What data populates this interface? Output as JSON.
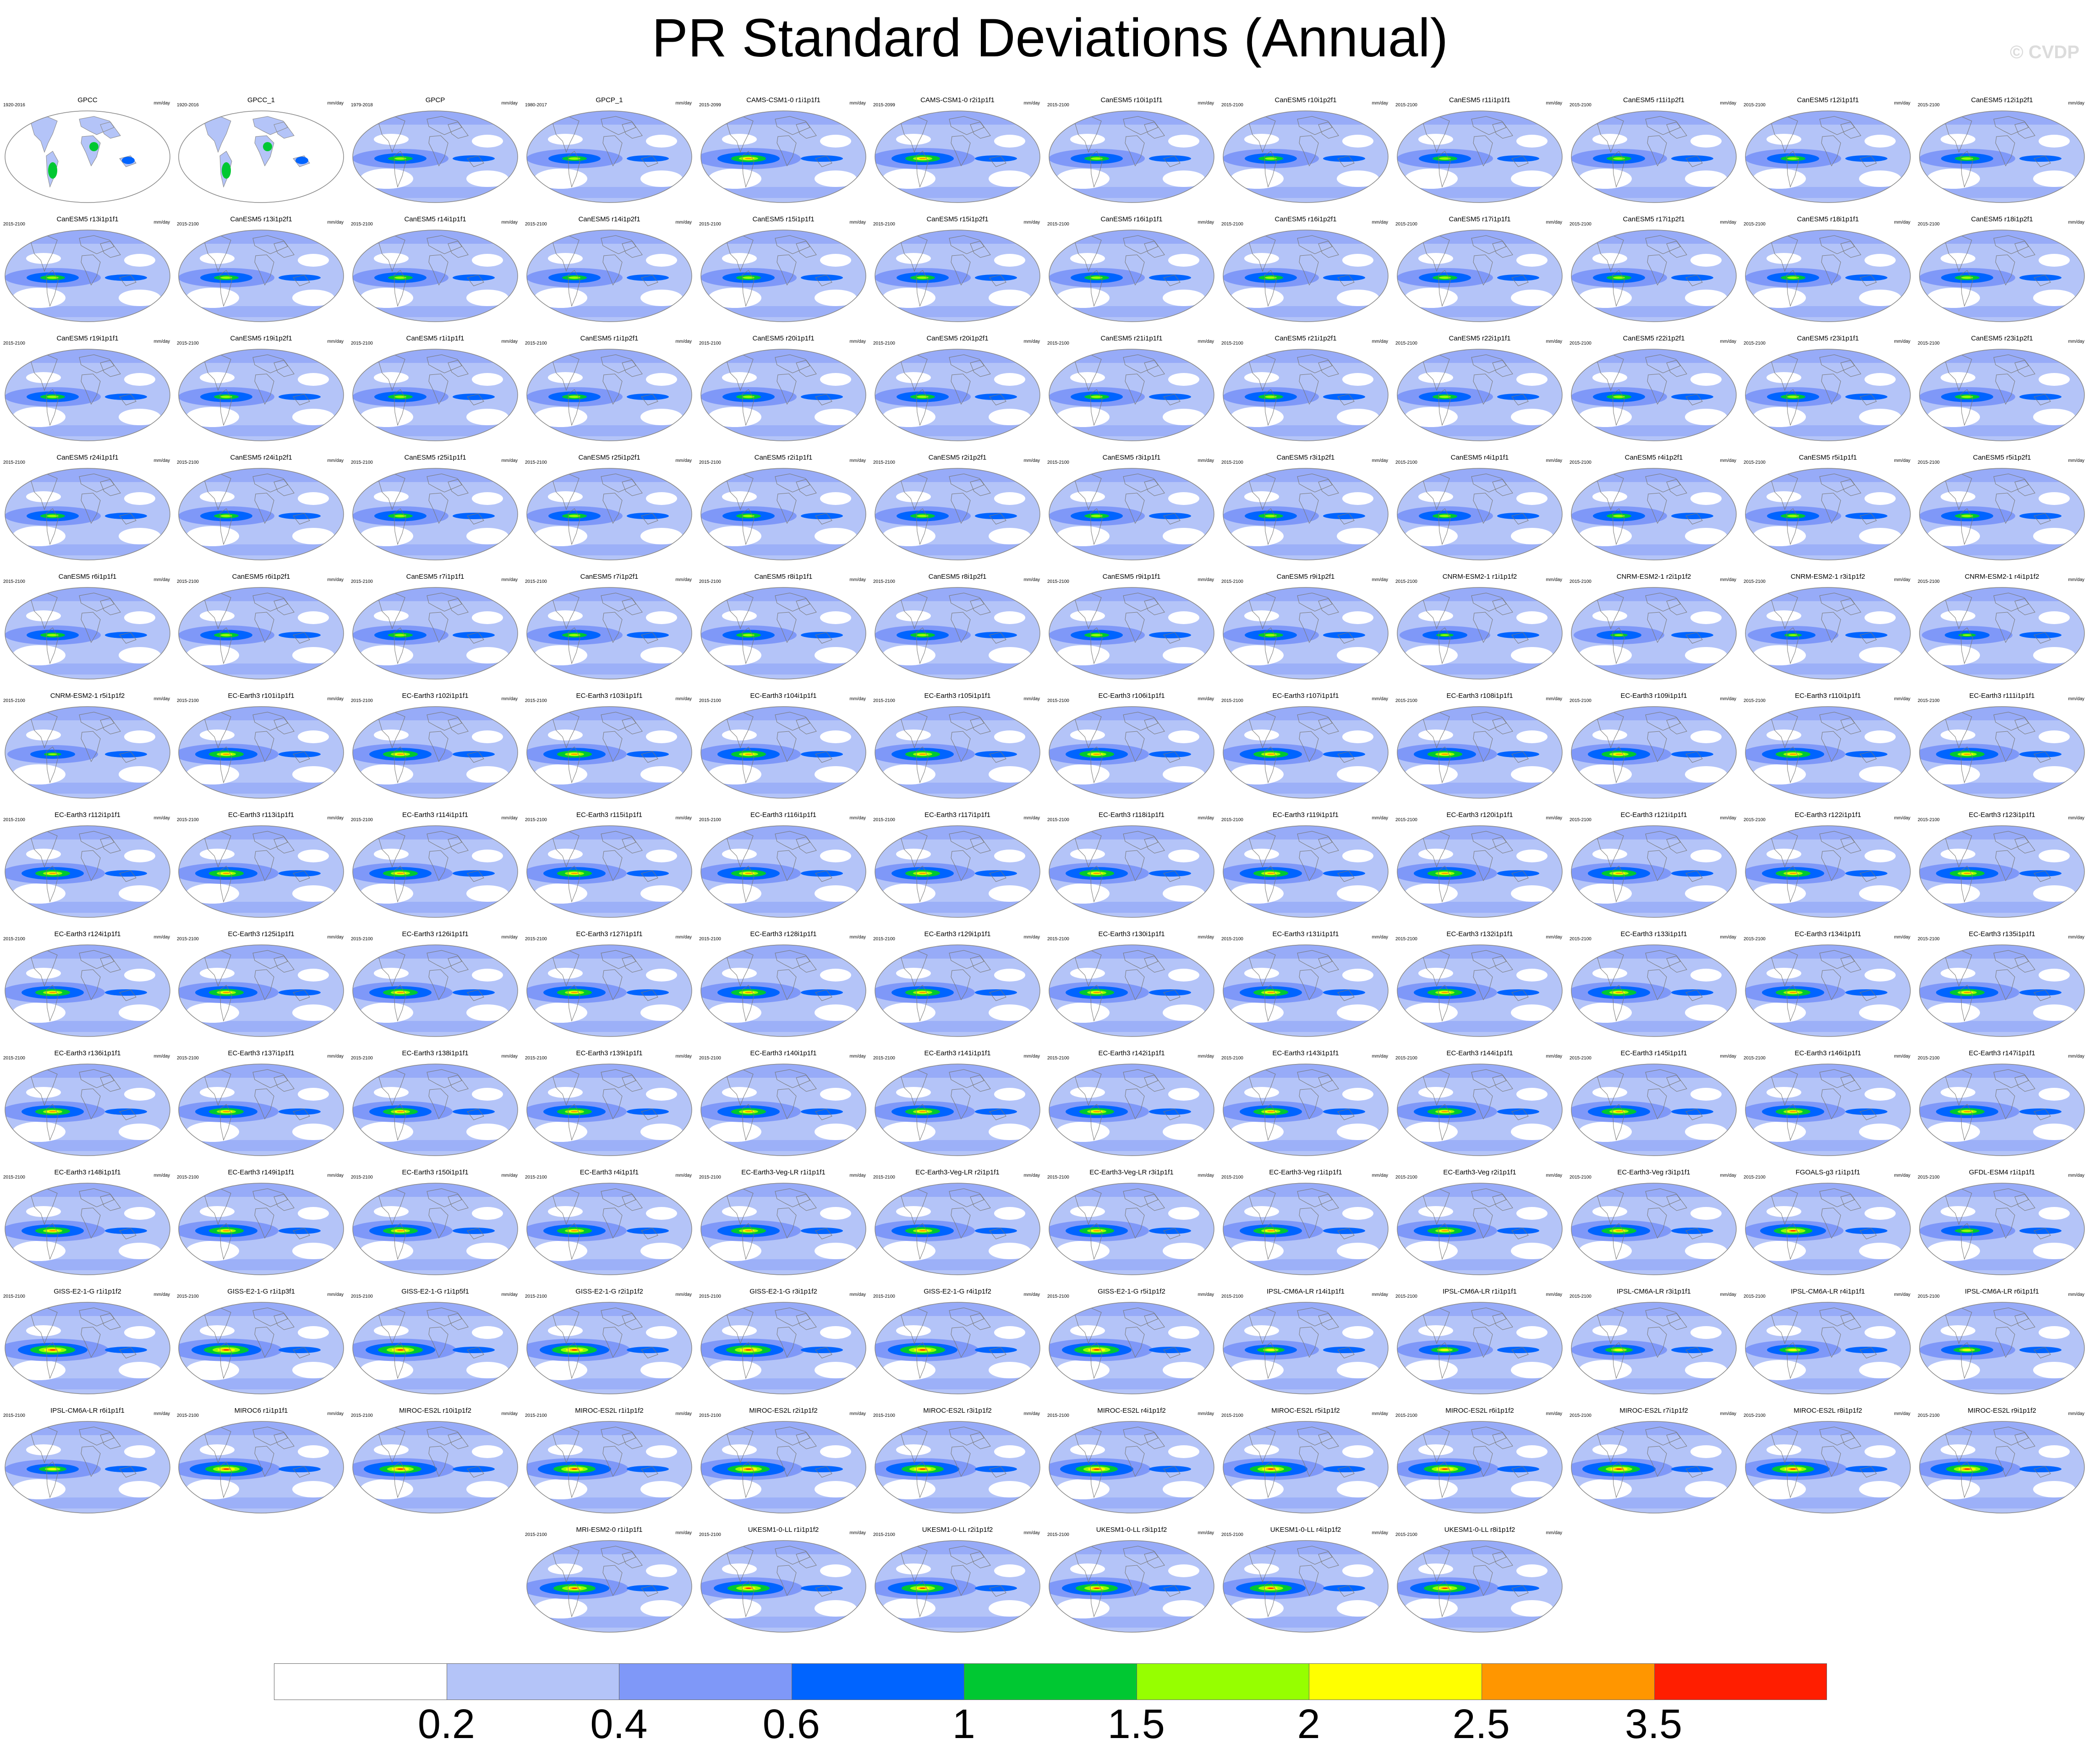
{
  "title": "PR Standard Deviations (Annual)",
  "watermark": "© CVDP",
  "units": "mm/day",
  "colorbar": {
    "colors": [
      "#ffffff",
      "#b4c4f8",
      "#7f98f8",
      "#0064ff",
      "#00c832",
      "#96ff00",
      "#ffff00",
      "#ff9600",
      "#ff1e00"
    ],
    "labels": [
      "0.2",
      "0.4",
      "0.6",
      "1",
      "1.5",
      "2",
      "2.5",
      "3.5"
    ]
  },
  "panels": [
    {
      "title": "GPCC",
      "period": "1920-2016",
      "style": "gpcc"
    },
    {
      "title": "GPCC_1",
      "period": "1920-2016",
      "style": "gpcc"
    },
    {
      "title": "GPCP",
      "period": "1979-2018",
      "style": "model"
    },
    {
      "title": "GPCP_1",
      "period": "1980-2017",
      "style": "model"
    },
    {
      "title": "CAMS-CSM1-0 r1i1p1f1",
      "period": "2015-2099",
      "style": "ec"
    },
    {
      "title": "CAMS-CSM1-0 r2i1p1f1",
      "period": "2015-2099",
      "style": "ec"
    },
    {
      "title": "CanESM5 r10i1p1f1",
      "period": "2015-2100",
      "style": "model"
    },
    {
      "title": "CanESM5 r10i1p2f1",
      "period": "2015-2100",
      "style": "model"
    },
    {
      "title": "CanESM5 r11i1p1f1",
      "period": "2015-2100",
      "style": "model"
    },
    {
      "title": "CanESM5 r11i1p2f1",
      "period": "2015-2100",
      "style": "model"
    },
    {
      "title": "CanESM5 r12i1p1f1",
      "period": "2015-2100",
      "style": "model"
    },
    {
      "title": "CanESM5 r12i1p2f1",
      "period": "2015-2100",
      "style": "model"
    },
    {
      "title": "CanESM5 r13i1p1f1",
      "period": "2015-2100",
      "style": "model"
    },
    {
      "title": "CanESM5 r13i1p2f1",
      "period": "2015-2100",
      "style": "model"
    },
    {
      "title": "CanESM5 r14i1p1f1",
      "period": "2015-2100",
      "style": "model"
    },
    {
      "title": "CanESM5 r14i1p2f1",
      "period": "2015-2100",
      "style": "model"
    },
    {
      "title": "CanESM5 r15i1p1f1",
      "period": "2015-2100",
      "style": "model"
    },
    {
      "title": "CanESM5 r15i1p2f1",
      "period": "2015-2100",
      "style": "model"
    },
    {
      "title": "CanESM5 r16i1p1f1",
      "period": "2015-2100",
      "style": "model"
    },
    {
      "title": "CanESM5 r16i1p2f1",
      "period": "2015-2100",
      "style": "model"
    },
    {
      "title": "CanESM5 r17i1p1f1",
      "period": "2015-2100",
      "style": "model"
    },
    {
      "title": "CanESM5 r17i1p2f1",
      "period": "2015-2100",
      "style": "model"
    },
    {
      "title": "CanESM5 r18i1p1f1",
      "period": "2015-2100",
      "style": "model"
    },
    {
      "title": "CanESM5 r18i1p2f1",
      "period": "2015-2100",
      "style": "model"
    },
    {
      "title": "CanESM5 r19i1p1f1",
      "period": "2015-2100",
      "style": "model"
    },
    {
      "title": "CanESM5 r19i1p2f1",
      "period": "2015-2100",
      "style": "model"
    },
    {
      "title": "CanESM5 r1i1p1f1",
      "period": "2015-2100",
      "style": "model"
    },
    {
      "title": "CanESM5 r1i1p2f1",
      "period": "2015-2100",
      "style": "model"
    },
    {
      "title": "CanESM5 r20i1p1f1",
      "period": "2015-2100",
      "style": "model"
    },
    {
      "title": "CanESM5 r20i1p2f1",
      "period": "2015-2100",
      "style": "model"
    },
    {
      "title": "CanESM5 r21i1p1f1",
      "period": "2015-2100",
      "style": "model"
    },
    {
      "title": "CanESM5 r21i1p2f1",
      "period": "2015-2100",
      "style": "model"
    },
    {
      "title": "CanESM5 r22i1p1f1",
      "period": "2015-2100",
      "style": "model"
    },
    {
      "title": "CanESM5 r22i1p2f1",
      "period": "2015-2100",
      "style": "model"
    },
    {
      "title": "CanESM5 r23i1p1f1",
      "period": "2015-2100",
      "style": "model"
    },
    {
      "title": "CanESM5 r23i1p2f1",
      "period": "2015-2100",
      "style": "model"
    },
    {
      "title": "CanESM5 r24i1p1f1",
      "period": "2015-2100",
      "style": "model"
    },
    {
      "title": "CanESM5 r24i1p2f1",
      "period": "2015-2100",
      "style": "model"
    },
    {
      "title": "CanESM5 r25i1p1f1",
      "period": "2015-2100",
      "style": "model"
    },
    {
      "title": "CanESM5 r25i1p2f1",
      "period": "2015-2100",
      "style": "model"
    },
    {
      "title": "CanESM5 r2i1p1f1",
      "period": "2015-2100",
      "style": "model"
    },
    {
      "title": "CanESM5 r2i1p2f1",
      "period": "2015-2100",
      "style": "model"
    },
    {
      "title": "CanESM5 r3i1p1f1",
      "period": "2015-2100",
      "style": "model"
    },
    {
      "title": "CanESM5 r3i1p2f1",
      "period": "2015-2100",
      "style": "model"
    },
    {
      "title": "CanESM5 r4i1p1f1",
      "period": "2015-2100",
      "style": "model"
    },
    {
      "title": "CanESM5 r4i1p2f1",
      "period": "2015-2100",
      "style": "model"
    },
    {
      "title": "CanESM5 r5i1p1f1",
      "period": "2015-2100",
      "style": "model"
    },
    {
      "title": "CanESM5 r5i1p2f1",
      "period": "2015-2100",
      "style": "model"
    },
    {
      "title": "CanESM5 r6i1p1f1",
      "period": "2015-2100",
      "style": "model"
    },
    {
      "title": "CanESM5 r6i1p2f1",
      "period": "2015-2100",
      "style": "model"
    },
    {
      "title": "CanESM5 r7i1p1f1",
      "period": "2015-2100",
      "style": "model"
    },
    {
      "title": "CanESM5 r7i1p2f1",
      "period": "2015-2100",
      "style": "model"
    },
    {
      "title": "CanESM5 r8i1p1f1",
      "period": "2015-2100",
      "style": "model"
    },
    {
      "title": "CanESM5 r8i1p2f1",
      "period": "2015-2100",
      "style": "model"
    },
    {
      "title": "CanESM5 r9i1p1f1",
      "period": "2015-2100",
      "style": "model"
    },
    {
      "title": "CanESM5 r9i1p2f1",
      "period": "2015-2100",
      "style": "model"
    },
    {
      "title": "CNRM-ESM2-1 r1i1p1f2",
      "period": "2015-2100",
      "style": "cnrm"
    },
    {
      "title": "CNRM-ESM2-1 r2i1p1f2",
      "period": "2015-2100",
      "style": "cnrm"
    },
    {
      "title": "CNRM-ESM2-1 r3i1p1f2",
      "period": "2015-2100",
      "style": "cnrm"
    },
    {
      "title": "CNRM-ESM2-1 r4i1p1f2",
      "period": "2015-2100",
      "style": "cnrm"
    },
    {
      "title": "CNRM-ESM2-1 r5i1p1f2",
      "period": "2015-2100",
      "style": "cnrm"
    },
    {
      "title": "EC-Earth3 r101i1p1f1",
      "period": "2015-2100",
      "style": "ec"
    },
    {
      "title": "EC-Earth3 r102i1p1f1",
      "period": "2015-2100",
      "style": "ec"
    },
    {
      "title": "EC-Earth3 r103i1p1f1",
      "period": "2015-2100",
      "style": "ec"
    },
    {
      "title": "EC-Earth3 r104i1p1f1",
      "period": "2015-2100",
      "style": "ec"
    },
    {
      "title": "EC-Earth3 r105i1p1f1",
      "period": "2015-2100",
      "style": "ec"
    },
    {
      "title": "EC-Earth3 r106i1p1f1",
      "period": "2015-2100",
      "style": "ec"
    },
    {
      "title": "EC-Earth3 r107i1p1f1",
      "period": "2015-2100",
      "style": "ec"
    },
    {
      "title": "EC-Earth3 r108i1p1f1",
      "period": "2015-2100",
      "style": "ec"
    },
    {
      "title": "EC-Earth3 r109i1p1f1",
      "period": "2015-2100",
      "style": "ec"
    },
    {
      "title": "EC-Earth3 r110i1p1f1",
      "period": "2015-2100",
      "style": "ec"
    },
    {
      "title": "EC-Earth3 r111i1p1f1",
      "period": "2015-2100",
      "style": "ec"
    },
    {
      "title": "EC-Earth3 r112i1p1f1",
      "period": "2015-2100",
      "style": "ec"
    },
    {
      "title": "EC-Earth3 r113i1p1f1",
      "period": "2015-2100",
      "style": "ec"
    },
    {
      "title": "EC-Earth3 r114i1p1f1",
      "period": "2015-2100",
      "style": "ec"
    },
    {
      "title": "EC-Earth3 r115i1p1f1",
      "period": "2015-2100",
      "style": "ec"
    },
    {
      "title": "EC-Earth3 r116i1p1f1",
      "period": "2015-2100",
      "style": "ec"
    },
    {
      "title": "EC-Earth3 r117i1p1f1",
      "period": "2015-2100",
      "style": "ec"
    },
    {
      "title": "EC-Earth3 r118i1p1f1",
      "period": "2015-2100",
      "style": "ec"
    },
    {
      "title": "EC-Earth3 r119i1p1f1",
      "period": "2015-2100",
      "style": "ec"
    },
    {
      "title": "EC-Earth3 r120i1p1f1",
      "period": "2015-2100",
      "style": "ec"
    },
    {
      "title": "EC-Earth3 r121i1p1f1",
      "period": "2015-2100",
      "style": "ec"
    },
    {
      "title": "EC-Earth3 r122i1p1f1",
      "period": "2015-2100",
      "style": "ec"
    },
    {
      "title": "EC-Earth3 r123i1p1f1",
      "period": "2015-2100",
      "style": "ec"
    },
    {
      "title": "EC-Earth3 r124i1p1f1",
      "period": "2015-2100",
      "style": "ec"
    },
    {
      "title": "EC-Earth3 r125i1p1f1",
      "period": "2015-2100",
      "style": "ec"
    },
    {
      "title": "EC-Earth3 r126i1p1f1",
      "period": "2015-2100",
      "style": "ec"
    },
    {
      "title": "EC-Earth3 r127i1p1f1",
      "period": "2015-2100",
      "style": "ec"
    },
    {
      "title": "EC-Earth3 r128i1p1f1",
      "period": "2015-2100",
      "style": "ec"
    },
    {
      "title": "EC-Earth3 r129i1p1f1",
      "period": "2015-2100",
      "style": "ec"
    },
    {
      "title": "EC-Earth3 r130i1p1f1",
      "period": "2015-2100",
      "style": "ec"
    },
    {
      "title": "EC-Earth3 r131i1p1f1",
      "period": "2015-2100",
      "style": "ec"
    },
    {
      "title": "EC-Earth3 r132i1p1f1",
      "period": "2015-2100",
      "style": "ec"
    },
    {
      "title": "EC-Earth3 r133i1p1f1",
      "period": "2015-2100",
      "style": "ec"
    },
    {
      "title": "EC-Earth3 r134i1p1f1",
      "period": "2015-2100",
      "style": "ec"
    },
    {
      "title": "EC-Earth3 r135i1p1f1",
      "period": "2015-2100",
      "style": "ec"
    },
    {
      "title": "EC-Earth3 r136i1p1f1",
      "period": "2015-2100",
      "style": "ec"
    },
    {
      "title": "EC-Earth3 r137i1p1f1",
      "period": "2015-2100",
      "style": "ec"
    },
    {
      "title": "EC-Earth3 r138i1p1f1",
      "period": "2015-2100",
      "style": "ec"
    },
    {
      "title": "EC-Earth3 r139i1p1f1",
      "period": "2015-2100",
      "style": "ec"
    },
    {
      "title": "EC-Earth3 r140i1p1f1",
      "period": "2015-2100",
      "style": "ec"
    },
    {
      "title": "EC-Earth3 r141i1p1f1",
      "period": "2015-2100",
      "style": "ec"
    },
    {
      "title": "EC-Earth3 r142i1p1f1",
      "period": "2015-2100",
      "style": "ec"
    },
    {
      "title": "EC-Earth3 r143i1p1f1",
      "period": "2015-2100",
      "style": "ec"
    },
    {
      "title": "EC-Earth3 r144i1p1f1",
      "period": "2015-2100",
      "style": "ec"
    },
    {
      "title": "EC-Earth3 r145i1p1f1",
      "period": "2015-2100",
      "style": "ec"
    },
    {
      "title": "EC-Earth3 r146i1p1f1",
      "period": "2015-2100",
      "style": "ec"
    },
    {
      "title": "EC-Earth3 r147i1p1f1",
      "period": "2015-2100",
      "style": "ec"
    },
    {
      "title": "EC-Earth3 r148i1p1f1",
      "period": "2015-2100",
      "style": "ec"
    },
    {
      "title": "EC-Earth3 r149i1p1f1",
      "period": "2015-2100",
      "style": "ec"
    },
    {
      "title": "EC-Earth3 r150i1p1f1",
      "period": "2015-2100",
      "style": "ec"
    },
    {
      "title": "EC-Earth3 r4i1p1f1",
      "period": "2015-2100",
      "style": "ec"
    },
    {
      "title": "EC-Earth3-Veg-LR r1i1p1f1",
      "period": "2015-2100",
      "style": "ec"
    },
    {
      "title": "EC-Earth3-Veg-LR r2i1p1f1",
      "period": "2015-2100",
      "style": "ec"
    },
    {
      "title": "EC-Earth3-Veg-LR r3i1p1f1",
      "period": "2015-2100",
      "style": "ec"
    },
    {
      "title": "EC-Earth3-Veg r1i1p1f1",
      "period": "2015-2100",
      "style": "ec"
    },
    {
      "title": "EC-Earth3-Veg r2i1p1f1",
      "period": "2015-2100",
      "style": "ec"
    },
    {
      "title": "EC-Earth3-Veg r3i1p1f1",
      "period": "2015-2100",
      "style": "ec"
    },
    {
      "title": "FGOALS-g3 r1i1p1f1",
      "period": "2015-2100",
      "style": "fgoals"
    },
    {
      "title": "GFDL-ESM4 r1i1p1f1",
      "period": "2015-2100",
      "style": "model"
    },
    {
      "title": "GISS-E2-1-G r1i1p1f2",
      "period": "2015-2100",
      "style": "giss"
    },
    {
      "title": "GISS-E2-1-G r1i1p3f1",
      "period": "2015-2100",
      "style": "giss"
    },
    {
      "title": "GISS-E2-1-G r1i1p5f1",
      "period": "2015-2100",
      "style": "giss"
    },
    {
      "title": "GISS-E2-1-G r2i1p1f2",
      "period": "2015-2100",
      "style": "giss"
    },
    {
      "title": "GISS-E2-1-G r3i1p1f2",
      "period": "2015-2100",
      "style": "giss"
    },
    {
      "title": "GISS-E2-1-G r4i1p1f2",
      "period": "2015-2100",
      "style": "giss"
    },
    {
      "title": "GISS-E2-1-G r5i1p1f2",
      "period": "2015-2100",
      "style": "giss"
    },
    {
      "title": "IPSL-CM6A-LR r14i1p1f1",
      "period": "2015-2100",
      "style": "ipsl"
    },
    {
      "title": "IPSL-CM6A-LR r1i1p1f1",
      "period": "2015-2100",
      "style": "ipsl"
    },
    {
      "title": "IPSL-CM6A-LR r3i1p1f1",
      "period": "2015-2100",
      "style": "ipsl"
    },
    {
      "title": "IPSL-CM6A-LR r4i1p1f1",
      "period": "2015-2100",
      "style": "ipsl"
    },
    {
      "title": "IPSL-CM6A-LR r6i1p1f1",
      "period": "2015-2100",
      "style": "ipsl"
    },
    {
      "title": "IPSL-CM6A-LR r6i1p1f1",
      "period": "2015-2100",
      "style": "ipsl"
    },
    {
      "title": "MIROC6 r1i1p1f1",
      "period": "2015-2100",
      "style": "miroc"
    },
    {
      "title": "MIROC-ES2L r10i1p1f2",
      "period": "2015-2100",
      "style": "miroc"
    },
    {
      "title": "MIROC-ES2L r1i1p1f2",
      "period": "2015-2100",
      "style": "miroc"
    },
    {
      "title": "MIROC-ES2L r2i1p1f2",
      "period": "2015-2100",
      "style": "miroc"
    },
    {
      "title": "MIROC-ES2L r3i1p1f2",
      "period": "2015-2100",
      "style": "miroc"
    },
    {
      "title": "MIROC-ES2L r4i1p1f2",
      "period": "2015-2100",
      "style": "miroc"
    },
    {
      "title": "MIROC-ES2L r5i1p1f2",
      "period": "2015-2100",
      "style": "miroc"
    },
    {
      "title": "MIROC-ES2L r6i1p1f2",
      "period": "2015-2100",
      "style": "miroc"
    },
    {
      "title": "MIROC-ES2L r7i1p1f2",
      "period": "2015-2100",
      "style": "miroc"
    },
    {
      "title": "MIROC-ES2L r8i1p1f2",
      "period": "2015-2100",
      "style": "miroc"
    },
    {
      "title": "MIROC-ES2L r9i1p1f2",
      "period": "2015-2100",
      "style": "miroc"
    },
    {
      "title": "MRI-ESM2-0 r1i1p1f1",
      "period": "2015-2100",
      "style": "mri"
    },
    {
      "title": "UKESM1-0-LL r1i1p1f2",
      "period": "2015-2100",
      "style": "mri"
    },
    {
      "title": "UKESM1-0-LL r2i1p1f2",
      "period": "2015-2100",
      "style": "mri"
    },
    {
      "title": "UKESM1-0-LL r3i1p1f2",
      "period": "2015-2100",
      "style": "mri"
    },
    {
      "title": "UKESM1-0-LL r4i1p1f2",
      "period": "2015-2100",
      "style": "mri"
    },
    {
      "title": "UKESM1-0-LL r8i1p1f2",
      "period": "2015-2100",
      "style": "mri"
    }
  ]
}
